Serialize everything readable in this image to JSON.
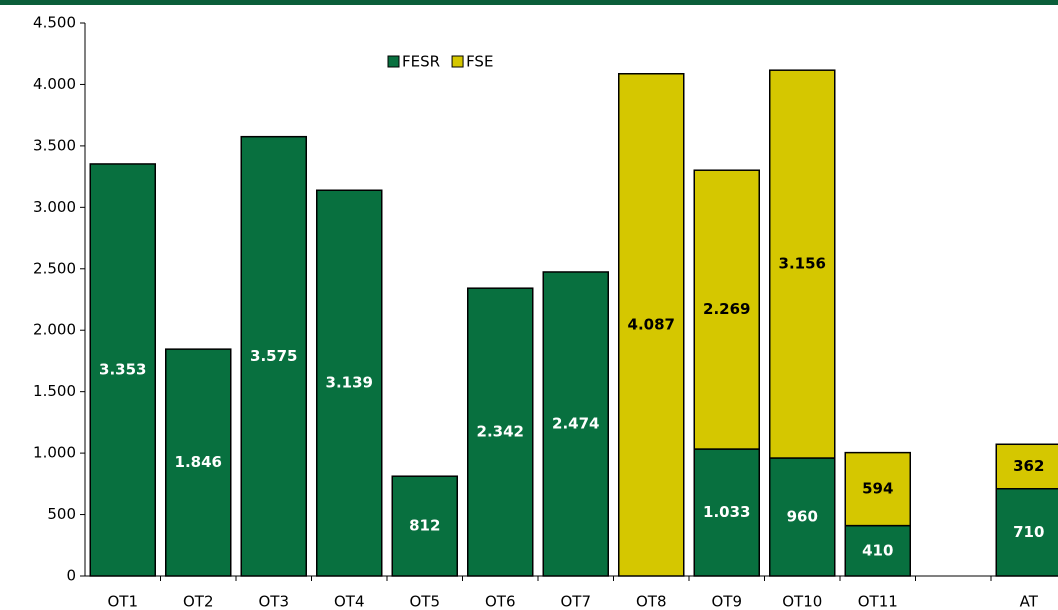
{
  "chart_data": {
    "type": "stacked_bar",
    "categories": [
      "OT1",
      "OT2",
      "OT3",
      "OT4",
      "OT5",
      "OT6",
      "OT7",
      "OT8",
      "OT9",
      "OT10",
      "OT11",
      null,
      "AT"
    ],
    "series": [
      {
        "name": "FESR",
        "color": "#08703f",
        "values": [
          3353,
          1846,
          3575,
          3139,
          812,
          2342,
          2474,
          null,
          1033,
          960,
          410,
          null,
          710
        ],
        "value_labels": [
          "3.353",
          "1.846",
          "3.575",
          "3.139",
          "812",
          "2.342",
          "2.474",
          null,
          "1.033",
          "960",
          "410",
          null,
          "710"
        ],
        "label_color": "#ffffff"
      },
      {
        "name": "FSE",
        "color": "#d5c700",
        "values": [
          null,
          null,
          null,
          null,
          null,
          null,
          null,
          4087,
          2269,
          3156,
          594,
          null,
          362
        ],
        "value_labels": [
          null,
          null,
          null,
          null,
          null,
          null,
          null,
          "4.087",
          "2.269",
          "3.156",
          "594",
          null,
          "362"
        ],
        "label_color": "#000000"
      }
    ],
    "ylim": [
      0,
      4500
    ],
    "yticks": [
      0,
      500,
      {
        "value": 1000,
        "label": "1.000"
      },
      {
        "value": 1500,
        "label": "1.500"
      },
      {
        "value": 2000,
        "label": "2.000"
      },
      {
        "value": 2500,
        "label": "2.500"
      },
      {
        "value": 3000,
        "label": "3.000"
      },
      {
        "value": 3500,
        "label": "3.500"
      },
      {
        "value": 4000,
        "label": "4.000"
      },
      {
        "value": 4500,
        "label": "4.500"
      }
    ],
    "legend": "top"
  }
}
